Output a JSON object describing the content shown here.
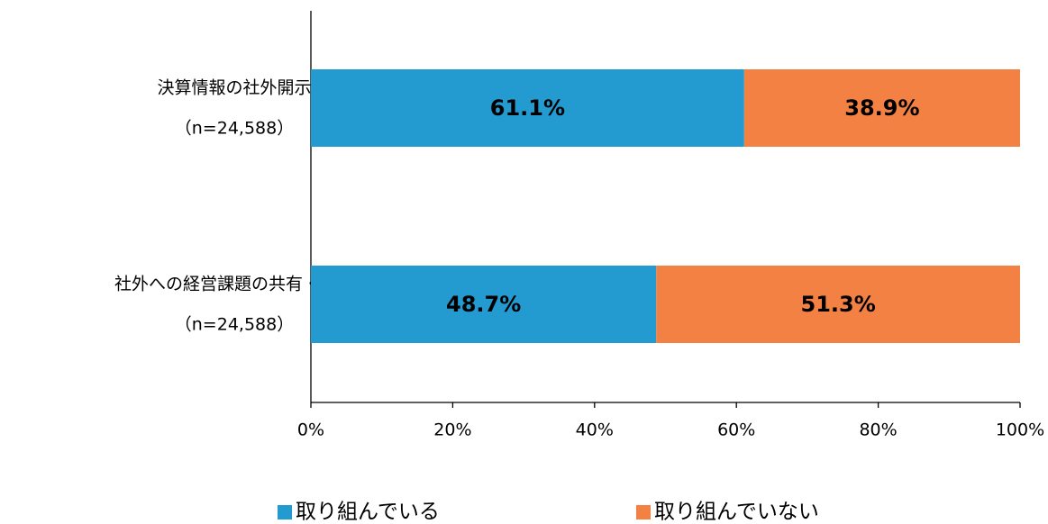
{
  "chart_data": {
    "type": "stacked-barh",
    "categories": [
      [
        "決算情報の社外開示",
        "（n=24,588）"
      ],
      [
        "社外への経営課題の共有・相談",
        "（n=24,588）"
      ]
    ],
    "series": [
      {
        "name": "取り組んでいる",
        "color": "#239bd1",
        "values": [
          61.1,
          48.7
        ],
        "value_labels": [
          "61.1%",
          "48.7%"
        ]
      },
      {
        "name": "取り組んでいない",
        "color": "#f38144",
        "values": [
          38.9,
          51.3
        ],
        "value_labels": [
          "38.9%",
          "51.3%"
        ]
      }
    ],
    "xlim": [
      0,
      100
    ],
    "xticks": [
      {
        "value": 0,
        "label": "0%"
      },
      {
        "value": 20,
        "label": "20%"
      },
      {
        "value": 40,
        "label": "40%"
      },
      {
        "value": 60,
        "label": "60%"
      },
      {
        "value": 80,
        "label": "80%"
      },
      {
        "value": 100,
        "label": "100%"
      }
    ],
    "legend": "bottom"
  }
}
